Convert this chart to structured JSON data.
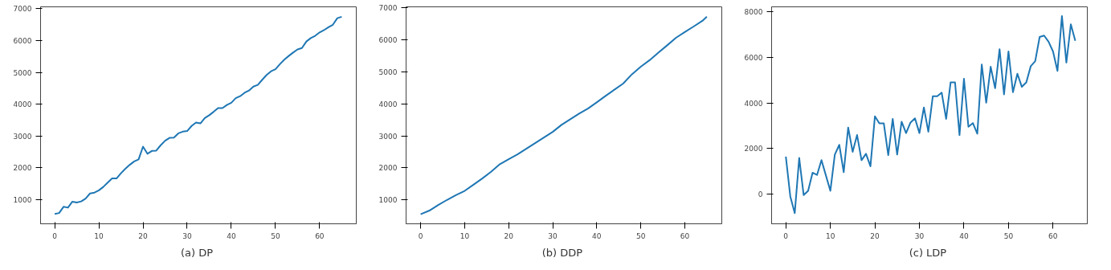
{
  "chart_data": [
    {
      "type": "line",
      "title": "(a)  DP",
      "grid": false,
      "xlim": [
        -3.2,
        68.3
      ],
      "ylim": [
        242,
        7062
      ],
      "xticks": [
        0,
        10,
        20,
        30,
        40,
        50,
        60
      ],
      "yticks": [
        1000,
        2000,
        3000,
        4000,
        5000,
        6000,
        7000
      ],
      "series": [
        {
          "color": "#1f77b4",
          "x": [
            0,
            1,
            2,
            3,
            4,
            5,
            6,
            7,
            8,
            9,
            10,
            11,
            12,
            13,
            14,
            15,
            16,
            17,
            18,
            19,
            20,
            21,
            22,
            23,
            24,
            25,
            26,
            27,
            28,
            29,
            30,
            31,
            32,
            33,
            34,
            35,
            36,
            37,
            38,
            39,
            40,
            41,
            42,
            43,
            44,
            45,
            46,
            47,
            48,
            49,
            50,
            51,
            52,
            53,
            54,
            55,
            56,
            57,
            58,
            59,
            60,
            61,
            62,
            63,
            64,
            65
          ],
          "values": [
            554,
            580,
            777,
            750,
            938,
            911,
            946,
            1036,
            1196,
            1223,
            1294,
            1401,
            1535,
            1668,
            1668,
            1829,
            1971,
            2096,
            2203,
            2266,
            2667,
            2444,
            2533,
            2542,
            2711,
            2854,
            2943,
            2952,
            3086,
            3139,
            3157,
            3317,
            3424,
            3397,
            3567,
            3656,
            3763,
            3879,
            3879,
            3977,
            4048,
            4191,
            4253,
            4360,
            4431,
            4556,
            4610,
            4770,
            4921,
            5037,
            5100,
            5260,
            5403,
            5518,
            5625,
            5724,
            5768,
            5973,
            6080,
            6152,
            6258,
            6330,
            6419,
            6499,
            6704,
            6749
          ]
        }
      ]
    },
    {
      "type": "line",
      "title": "(b)  DDP",
      "grid": false,
      "xlim": [
        -3.3,
        68.4
      ],
      "ylim": [
        254,
        7026
      ],
      "xticks": [
        0,
        10,
        20,
        30,
        40,
        50,
        60
      ],
      "yticks": [
        1000,
        2000,
        3000,
        4000,
        5000,
        6000,
        7000
      ],
      "series": [
        {
          "color": "#1f77b4",
          "x": [
            0,
            2,
            4,
            6,
            8,
            10,
            12,
            14,
            16,
            18,
            20,
            22,
            24,
            26,
            28,
            30,
            32,
            34,
            36,
            38,
            40,
            42,
            44,
            46,
            48,
            50,
            52,
            54,
            56,
            58,
            60,
            62,
            64,
            65
          ],
          "values": [
            553,
            667,
            842,
            1000,
            1149,
            1281,
            1474,
            1667,
            1877,
            2114,
            2272,
            2421,
            2596,
            2772,
            2947,
            3123,
            3342,
            3518,
            3693,
            3851,
            4044,
            4246,
            4439,
            4632,
            4921,
            5158,
            5360,
            5596,
            5825,
            6061,
            6237,
            6412,
            6588,
            6719
          ]
        }
      ]
    },
    {
      "type": "line",
      "title": "(c)  LDP",
      "grid": false,
      "xlim": [
        -3.2,
        67.7
      ],
      "ylim": [
        -1300,
        8220
      ],
      "xticks": [
        0,
        10,
        20,
        30,
        40,
        50,
        60
      ],
      "yticks": [
        0,
        2000,
        4000,
        6000,
        8000
      ],
      "series": [
        {
          "color": "#1f77b4",
          "x": [
            0,
            1,
            2,
            3,
            4,
            5,
            6,
            7,
            8,
            9,
            10,
            11,
            12,
            13,
            14,
            15,
            16,
            17,
            18,
            19,
            20,
            21,
            22,
            23,
            24,
            25,
            26,
            27,
            28,
            29,
            30,
            31,
            32,
            33,
            34,
            35,
            36,
            37,
            38,
            39,
            40,
            41,
            42,
            43,
            44,
            45,
            46,
            47,
            48,
            49,
            50,
            51,
            52,
            53,
            54,
            55,
            56,
            57,
            58,
            59,
            60,
            61,
            62,
            63,
            64,
            65
          ],
          "values": [
            1651,
            -98,
            -832,
            1590,
            -37,
            147,
            942,
            844,
            1492,
            820,
            147,
            1737,
            2165,
            966,
            2924,
            1859,
            2593,
            1492,
            1774,
            1223,
            3413,
            3107,
            3107,
            1713,
            3303,
            1737,
            3180,
            2679,
            3144,
            3327,
            2679,
            3804,
            2740,
            4294,
            4294,
            4453,
            3303,
            4905,
            4905,
            2593,
            5064,
            2960,
            3119,
            2654,
            5688,
            4012,
            5590,
            4648,
            6361,
            4380,
            6263,
            4477,
            5284,
            4709,
            4905,
            5615,
            5835,
            6899,
            6960,
            6691,
            6263,
            5407,
            7817,
            5774,
            7450,
            6728
          ]
        }
      ]
    }
  ]
}
